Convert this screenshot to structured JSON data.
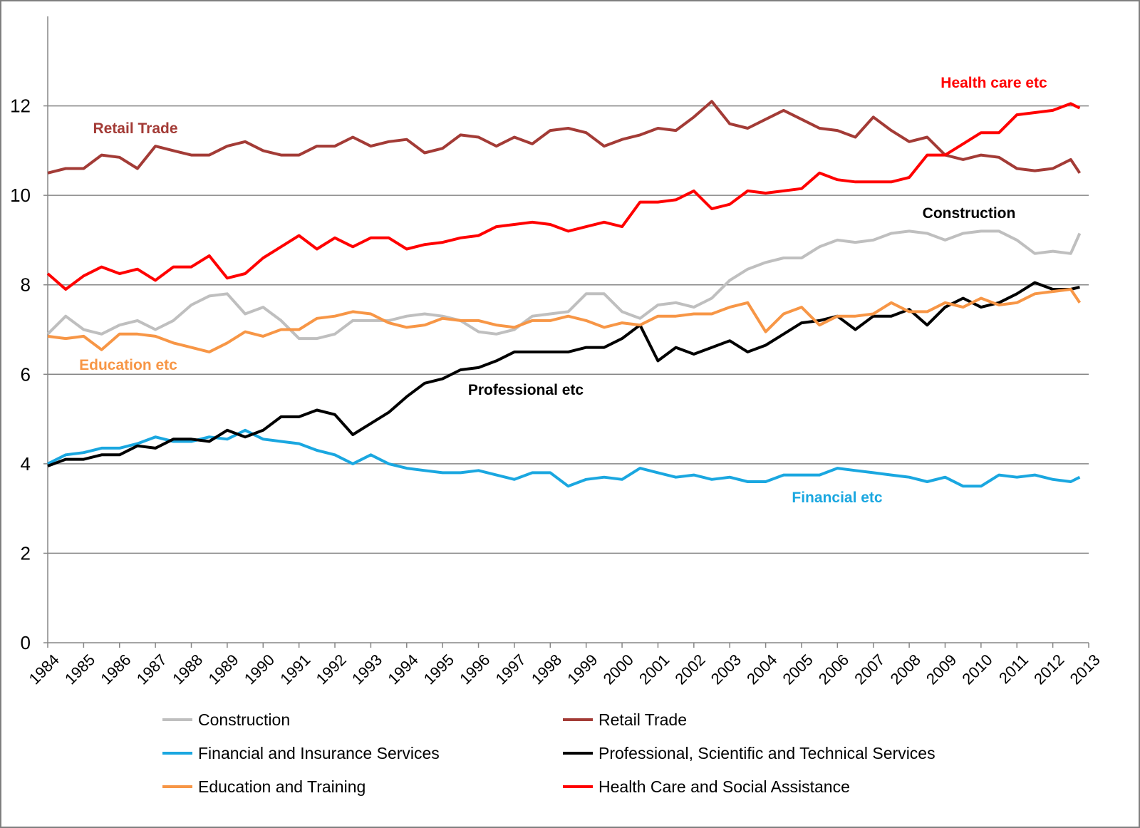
{
  "chart_data": {
    "type": "line",
    "x": [
      1984,
      1984.5,
      1985,
      1985.5,
      1986,
      1986.5,
      1987,
      1987.5,
      1988,
      1988.5,
      1989,
      1989.5,
      1990,
      1990.5,
      1991,
      1991.5,
      1992,
      1992.5,
      1993,
      1993.5,
      1994,
      1994.5,
      1995,
      1995.5,
      1996,
      1996.5,
      1997,
      1997.5,
      1998,
      1998.5,
      1999,
      1999.5,
      2000,
      2000.5,
      2001,
      2001.5,
      2002,
      2002.5,
      2003,
      2003.5,
      2004,
      2004.5,
      2005,
      2005.5,
      2006,
      2006.5,
      2007,
      2007.5,
      2008,
      2008.5,
      2009,
      2009.5,
      2010,
      2010.5,
      2011,
      2011.5,
      2012,
      2012.5,
      2012.75
    ],
    "xlim": [
      1984,
      2013
    ],
    "xticks": [
      1984,
      1985,
      1986,
      1987,
      1988,
      1989,
      1990,
      1991,
      1992,
      1993,
      1994,
      1995,
      1996,
      1997,
      1998,
      1999,
      2000,
      2001,
      2002,
      2003,
      2004,
      2005,
      2006,
      2007,
      2008,
      2009,
      2010,
      2011,
      2012,
      2013
    ],
    "ylim": [
      0,
      14
    ],
    "yticks": [
      0,
      2,
      4,
      6,
      8,
      10,
      12
    ],
    "grid": true,
    "series": [
      {
        "name": "Construction",
        "color": "#bfbfbf",
        "values": [
          6.9,
          7.3,
          7.0,
          6.9,
          7.1,
          7.2,
          7.0,
          7.2,
          7.55,
          7.75,
          7.8,
          7.35,
          7.5,
          7.2,
          6.8,
          6.8,
          6.9,
          7.2,
          7.2,
          7.2,
          7.3,
          7.35,
          7.3,
          7.2,
          6.95,
          6.9,
          7.0,
          7.3,
          7.35,
          7.4,
          7.8,
          7.8,
          7.4,
          7.25,
          7.55,
          7.6,
          7.5,
          7.7,
          8.1,
          8.35,
          8.5,
          8.6,
          8.6,
          8.85,
          9.0,
          8.95,
          9.0,
          9.15,
          9.2,
          9.15,
          9.0,
          9.15,
          9.2,
          9.2,
          9.0,
          8.7,
          8.75,
          8.7,
          9.15
        ]
      },
      {
        "name": "Retail Trade",
        "color": "#a33b36",
        "values": [
          10.5,
          10.6,
          10.6,
          10.9,
          10.85,
          10.6,
          11.1,
          11.0,
          10.9,
          10.9,
          11.1,
          11.2,
          11.0,
          10.9,
          10.9,
          11.1,
          11.1,
          11.3,
          11.1,
          11.2,
          11.25,
          10.95,
          11.05,
          11.35,
          11.3,
          11.1,
          11.3,
          11.15,
          11.45,
          11.5,
          11.4,
          11.1,
          11.25,
          11.35,
          11.5,
          11.45,
          11.75,
          12.1,
          11.6,
          11.5,
          11.7,
          11.9,
          11.7,
          11.5,
          11.45,
          11.3,
          11.75,
          11.45,
          11.2,
          11.3,
          10.9,
          10.8,
          10.9,
          10.85,
          10.6,
          10.55,
          10.6,
          10.8,
          10.5
        ]
      },
      {
        "name": "Financial and Insurance Services",
        "color": "#1aa7e0",
        "values": [
          4.0,
          4.2,
          4.25,
          4.35,
          4.35,
          4.45,
          4.6,
          4.5,
          4.5,
          4.6,
          4.55,
          4.75,
          4.55,
          4.5,
          4.45,
          4.3,
          4.2,
          4.0,
          4.2,
          4.0,
          3.9,
          3.85,
          3.8,
          3.8,
          3.85,
          3.75,
          3.65,
          3.8,
          3.8,
          3.5,
          3.65,
          3.7,
          3.65,
          3.9,
          3.8,
          3.7,
          3.75,
          3.65,
          3.7,
          3.6,
          3.6,
          3.75,
          3.75,
          3.75,
          3.9,
          3.85,
          3.8,
          3.75,
          3.7,
          3.6,
          3.7,
          3.5,
          3.5,
          3.75,
          3.7,
          3.75,
          3.65,
          3.6,
          3.7
        ]
      },
      {
        "name": "Professional, Scientific and Technical Services",
        "color": "#000000",
        "values": [
          3.95,
          4.1,
          4.1,
          4.2,
          4.2,
          4.4,
          4.35,
          4.55,
          4.55,
          4.5,
          4.75,
          4.6,
          4.75,
          5.05,
          5.05,
          5.2,
          5.1,
          4.65,
          4.9,
          5.15,
          5.5,
          5.8,
          5.9,
          6.1,
          6.15,
          6.3,
          6.5,
          6.5,
          6.5,
          6.5,
          6.6,
          6.6,
          6.8,
          7.1,
          6.3,
          6.6,
          6.45,
          6.6,
          6.75,
          6.5,
          6.65,
          6.9,
          7.15,
          7.2,
          7.3,
          7.0,
          7.3,
          7.3,
          7.45,
          7.1,
          7.5,
          7.7,
          7.5,
          7.6,
          7.8,
          8.05,
          7.9,
          7.9,
          7.95
        ]
      },
      {
        "name": "Education and Training",
        "color": "#f79646",
        "values": [
          6.85,
          6.8,
          6.85,
          6.55,
          6.9,
          6.9,
          6.85,
          6.7,
          6.6,
          6.5,
          6.7,
          6.95,
          6.85,
          7.0,
          7.0,
          7.25,
          7.3,
          7.4,
          7.35,
          7.15,
          7.05,
          7.1,
          7.25,
          7.2,
          7.2,
          7.1,
          7.05,
          7.2,
          7.2,
          7.3,
          7.2,
          7.05,
          7.15,
          7.1,
          7.3,
          7.3,
          7.35,
          7.35,
          7.5,
          7.6,
          6.95,
          7.35,
          7.5,
          7.1,
          7.3,
          7.3,
          7.35,
          7.6,
          7.4,
          7.4,
          7.6,
          7.5,
          7.7,
          7.55,
          7.6,
          7.8,
          7.85,
          7.9,
          7.6
        ]
      },
      {
        "name": "Health Care and Social Assistance",
        "color": "#ff0000",
        "values": [
          8.25,
          7.9,
          8.2,
          8.4,
          8.25,
          8.35,
          8.1,
          8.4,
          8.4,
          8.65,
          8.15,
          8.25,
          8.6,
          8.85,
          9.1,
          8.8,
          9.05,
          8.85,
          9.05,
          9.05,
          8.8,
          8.9,
          8.95,
          9.05,
          9.1,
          9.3,
          9.35,
          9.4,
          9.35,
          9.2,
          9.3,
          9.4,
          9.3,
          9.85,
          9.85,
          9.9,
          10.1,
          9.7,
          9.8,
          10.1,
          10.05,
          10.1,
          10.15,
          10.5,
          10.35,
          10.3,
          10.3,
          10.3,
          10.4,
          10.9,
          10.9,
          11.15,
          11.4,
          11.4,
          11.8,
          11.85,
          11.9,
          12.05,
          11.95
        ]
      }
    ],
    "annotations": [
      {
        "text": "Retail Trade",
        "color": "#a33b36"
      },
      {
        "text": "Health care etc",
        "color": "#ff0000"
      },
      {
        "text": "Construction",
        "color": "#000000"
      },
      {
        "text": "Education etc",
        "color": "#f79646"
      },
      {
        "text": "Professional etc",
        "color": "#000000"
      },
      {
        "text": "Financial etc",
        "color": "#1aa7e0"
      }
    ]
  }
}
